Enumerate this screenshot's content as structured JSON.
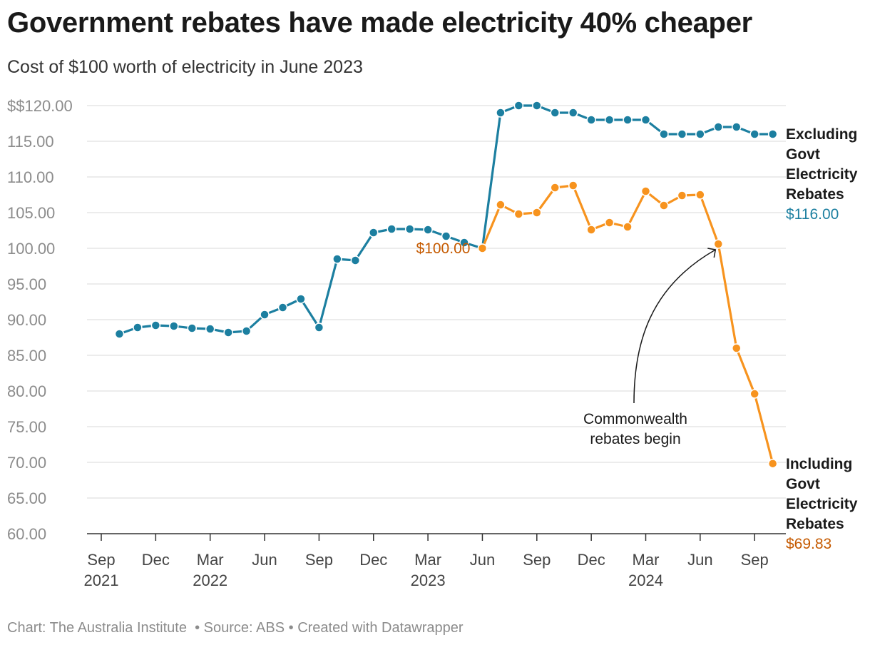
{
  "title": "Government rebates have made electricity 40% cheaper",
  "subtitle": "Cost of $100 worth of electricity in June 2023",
  "footer": {
    "credit": "Chart: The Australia Institute",
    "source": "Source: ABS",
    "created": "Created with Datawrapper"
  },
  "colors": {
    "excluding": "#1c7fa0",
    "including": "#f7931e",
    "including_text": "#c55a00",
    "grid": "#e1e1e1",
    "axis": "#333333"
  },
  "chart_data": {
    "type": "line",
    "ylim": [
      60,
      120
    ],
    "y_ticks": [
      {
        "value": 120,
        "label": "$$120.00"
      },
      {
        "value": 115,
        "label": "115.00"
      },
      {
        "value": 110,
        "label": "110.00"
      },
      {
        "value": 105,
        "label": "105.00"
      },
      {
        "value": 100,
        "label": "100.00"
      },
      {
        "value": 95,
        "label": "95.00"
      },
      {
        "value": 90,
        "label": "90.00"
      },
      {
        "value": 85,
        "label": "85.00"
      },
      {
        "value": 80,
        "label": "80.00"
      },
      {
        "value": 75,
        "label": "75.00"
      },
      {
        "value": 70,
        "label": "70.00"
      },
      {
        "value": 65,
        "label": "65.00"
      },
      {
        "value": 60,
        "label": "60.00"
      }
    ],
    "x_ticks": [
      {
        "date": "2021-09",
        "label": "Sep",
        "year": "2021"
      },
      {
        "date": "2021-12",
        "label": "Dec",
        "year": ""
      },
      {
        "date": "2022-03",
        "label": "Mar",
        "year": "2022"
      },
      {
        "date": "2022-06",
        "label": "Jun",
        "year": ""
      },
      {
        "date": "2022-09",
        "label": "Sep",
        "year": ""
      },
      {
        "date": "2022-12",
        "label": "Dec",
        "year": ""
      },
      {
        "date": "2023-03",
        "label": "Mar",
        "year": "2023"
      },
      {
        "date": "2023-06",
        "label": "Jun",
        "year": ""
      },
      {
        "date": "2023-09",
        "label": "Sep",
        "year": ""
      },
      {
        "date": "2023-12",
        "label": "Dec",
        "year": ""
      },
      {
        "date": "2024-03",
        "label": "Mar",
        "year": "2024"
      },
      {
        "date": "2024-06",
        "label": "Jun",
        "year": ""
      },
      {
        "date": "2024-09",
        "label": "Sep",
        "year": ""
      }
    ],
    "series": [
      {
        "name": "Excluding Govt Electricity Rebates",
        "label_lines": [
          "Excluding",
          "Govt",
          "Electricity",
          "Rebates"
        ],
        "end_value": "$116.00",
        "points": [
          {
            "x": "2021-10",
            "y": 88.0
          },
          {
            "x": "2021-11",
            "y": 88.9
          },
          {
            "x": "2021-12",
            "y": 89.2
          },
          {
            "x": "2022-01",
            "y": 89.1
          },
          {
            "x": "2022-02",
            "y": 88.8
          },
          {
            "x": "2022-03",
            "y": 88.7
          },
          {
            "x": "2022-04",
            "y": 88.2
          },
          {
            "x": "2022-05",
            "y": 88.4
          },
          {
            "x": "2022-06",
            "y": 90.7
          },
          {
            "x": "2022-07",
            "y": 91.7
          },
          {
            "x": "2022-08",
            "y": 92.9
          },
          {
            "x": "2022-09",
            "y": 88.9
          },
          {
            "x": "2022-10",
            "y": 98.5
          },
          {
            "x": "2022-11",
            "y": 98.3
          },
          {
            "x": "2022-12",
            "y": 102.2
          },
          {
            "x": "2023-01",
            "y": 102.7
          },
          {
            "x": "2023-02",
            "y": 102.7
          },
          {
            "x": "2023-03",
            "y": 102.6
          },
          {
            "x": "2023-04",
            "y": 101.7
          },
          {
            "x": "2023-05",
            "y": 100.8
          },
          {
            "x": "2023-06",
            "y": 100.0
          },
          {
            "x": "2023-07",
            "y": 119.0
          },
          {
            "x": "2023-08",
            "y": 120.0
          },
          {
            "x": "2023-09",
            "y": 120.0
          },
          {
            "x": "2023-10",
            "y": 119.0
          },
          {
            "x": "2023-11",
            "y": 119.0
          },
          {
            "x": "2023-12",
            "y": 118.0
          },
          {
            "x": "2024-01",
            "y": 118.0
          },
          {
            "x": "2024-02",
            "y": 118.0
          },
          {
            "x": "2024-03",
            "y": 118.0
          },
          {
            "x": "2024-04",
            "y": 116.0
          },
          {
            "x": "2024-05",
            "y": 116.0
          },
          {
            "x": "2024-06",
            "y": 116.0
          },
          {
            "x": "2024-07",
            "y": 117.0
          },
          {
            "x": "2024-08",
            "y": 117.0
          },
          {
            "x": "2024-09",
            "y": 116.0
          },
          {
            "x": "2024-10",
            "y": 116.0
          }
        ]
      },
      {
        "name": "Including Govt Electricity Rebates",
        "label_lines": [
          "Including",
          "Govt",
          "Electricity",
          "Rebates"
        ],
        "end_value": "$69.83",
        "points": [
          {
            "x": "2023-06",
            "y": 100.0
          },
          {
            "x": "2023-07",
            "y": 106.1
          },
          {
            "x": "2023-08",
            "y": 104.8
          },
          {
            "x": "2023-09",
            "y": 105.0
          },
          {
            "x": "2023-10",
            "y": 108.5
          },
          {
            "x": "2023-11",
            "y": 108.8
          },
          {
            "x": "2023-12",
            "y": 102.6
          },
          {
            "x": "2024-01",
            "y": 103.6
          },
          {
            "x": "2024-02",
            "y": 103.0
          },
          {
            "x": "2024-03",
            "y": 108.0
          },
          {
            "x": "2024-04",
            "y": 106.0
          },
          {
            "x": "2024-05",
            "y": 107.4
          },
          {
            "x": "2024-06",
            "y": 107.5
          },
          {
            "x": "2024-07",
            "y": 100.6
          },
          {
            "x": "2024-08",
            "y": 86.0
          },
          {
            "x": "2024-09",
            "y": 79.6
          },
          {
            "x": "2024-10",
            "y": 69.83
          }
        ]
      }
    ],
    "annotations": [
      {
        "text": "$100.00",
        "at": {
          "x": "2023-06",
          "y": 100.0
        }
      },
      {
        "text_lines": [
          "Commonwealth",
          "rebates begin"
        ],
        "points_to": {
          "x": "2024-07",
          "y": 100.6
        }
      }
    ]
  }
}
